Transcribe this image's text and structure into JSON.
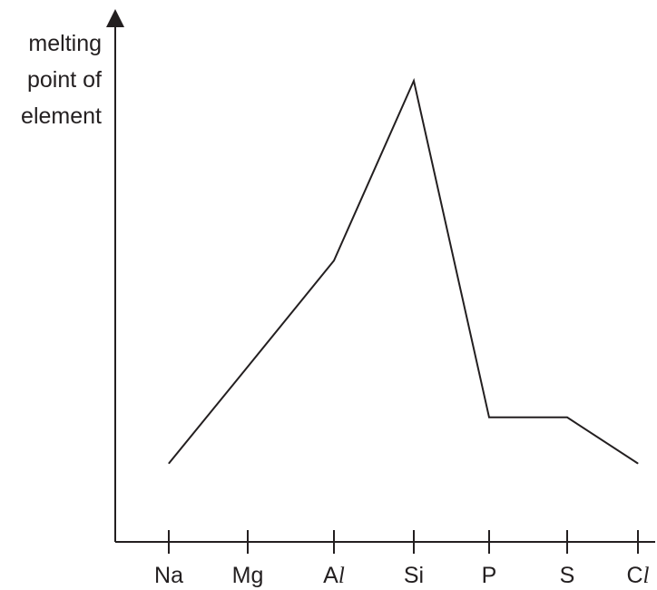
{
  "chart_data": {
    "type": "line",
    "ylabel_lines": [
      "melting",
      "point of",
      "element"
    ],
    "categories": [
      "Na",
      "Mg",
      "Al",
      "Si",
      "P",
      "S",
      "Cl"
    ],
    "tick_text": [
      {
        "main": "Na",
        "italic": ""
      },
      {
        "main": "Mg",
        "italic": ""
      },
      {
        "main": "A",
        "italic": "l"
      },
      {
        "main": "Si",
        "italic": ""
      },
      {
        "main": "P",
        "italic": ""
      },
      {
        "main": "S",
        "italic": ""
      },
      {
        "main": "C",
        "italic": "l"
      }
    ],
    "series": [
      {
        "values": [
          0.17,
          0.38,
          0.61,
          1.0,
          0.27,
          0.27,
          0.17
        ]
      }
    ],
    "ylim": [
      0,
      1.1
    ],
    "y_ticks": false,
    "grid": false,
    "line_color": "#231f20"
  }
}
